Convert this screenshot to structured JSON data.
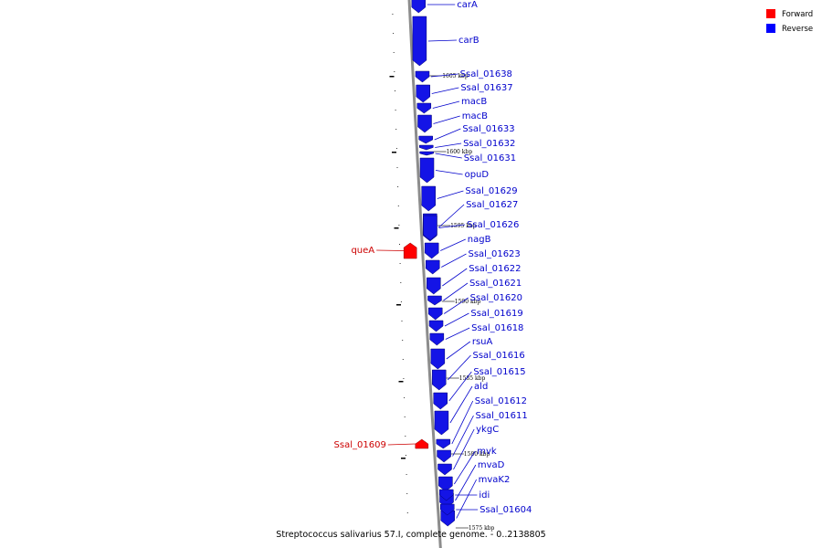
{
  "caption": "Streptococcus salivarius 57.I, complete genome. - 0..2138805",
  "legend": [
    {
      "label": "Forward",
      "color": "#ff0000"
    },
    {
      "label": "Reverse",
      "color": "#0000ff"
    }
  ],
  "colors": {
    "forward": "#ff0000",
    "reverse": "#1414e6",
    "label_forward": "#cc0000",
    "label_reverse": "#0000cc",
    "backbone": "#8c8c8c"
  },
  "position_ticks": [
    "1605 kbp",
    "1600 kbp",
    "1595 kbp",
    "1590 kbp",
    "1585 kbp",
    "1580 kbp",
    "1575 kbp"
  ],
  "genes": [
    {
      "name": "carA",
      "strand": "reverse"
    },
    {
      "name": "carB",
      "strand": "reverse"
    },
    {
      "name": "Ssal_01638",
      "strand": "reverse"
    },
    {
      "name": "Ssal_01637",
      "strand": "reverse"
    },
    {
      "name": "macB",
      "strand": "reverse"
    },
    {
      "name": "macB",
      "strand": "reverse"
    },
    {
      "name": "Ssal_01633",
      "strand": "reverse"
    },
    {
      "name": "Ssal_01632",
      "strand": "reverse"
    },
    {
      "name": "Ssal_01631",
      "strand": "reverse"
    },
    {
      "name": "opuD",
      "strand": "reverse"
    },
    {
      "name": "Ssal_01629",
      "strand": "reverse"
    },
    {
      "name": "Ssal_01627",
      "strand": "reverse"
    },
    {
      "name": "Ssal_01626",
      "strand": "reverse"
    },
    {
      "name": "queA",
      "strand": "forward"
    },
    {
      "name": "nagB",
      "strand": "reverse"
    },
    {
      "name": "Ssal_01623",
      "strand": "reverse"
    },
    {
      "name": "Ssal_01622",
      "strand": "reverse"
    },
    {
      "name": "Ssal_01621",
      "strand": "reverse"
    },
    {
      "name": "Ssal_01620",
      "strand": "reverse"
    },
    {
      "name": "Ssal_01619",
      "strand": "reverse"
    },
    {
      "name": "Ssal_01618",
      "strand": "reverse"
    },
    {
      "name": "rsuA",
      "strand": "reverse"
    },
    {
      "name": "Ssal_01616",
      "strand": "reverse"
    },
    {
      "name": "Ssal_01615",
      "strand": "reverse"
    },
    {
      "name": "ald",
      "strand": "reverse"
    },
    {
      "name": "Ssal_01612",
      "strand": "reverse"
    },
    {
      "name": "Ssal_01611",
      "strand": "reverse"
    },
    {
      "name": "ykgC",
      "strand": "reverse"
    },
    {
      "name": "Ssal_01609",
      "strand": "forward"
    },
    {
      "name": "mvk",
      "strand": "reverse"
    },
    {
      "name": "mvaD",
      "strand": "reverse"
    },
    {
      "name": "mvaK2",
      "strand": "reverse"
    },
    {
      "name": "idi",
      "strand": "reverse"
    },
    {
      "name": "Ssal_01604",
      "strand": "reverse"
    }
  ]
}
